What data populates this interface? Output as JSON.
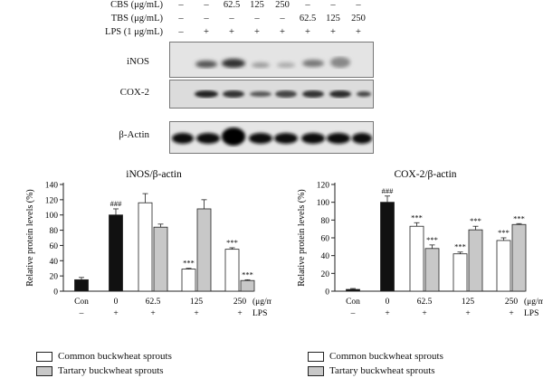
{
  "header": {
    "row_labels": [
      "CBS (μg/mL)",
      "TBS (μg/mL)",
      "LPS (1 μg/mL)"
    ],
    "rows": [
      [
        "–",
        "–",
        "62.5",
        "125",
        "250",
        "–",
        "–",
        "–"
      ],
      [
        "–",
        "–",
        "–",
        "–",
        "–",
        "62.5",
        "125",
        "250"
      ],
      [
        "–",
        "+",
        "+",
        "+",
        "+",
        "+",
        "+",
        "+"
      ]
    ]
  },
  "blots": {
    "labels": [
      "iNOS",
      "COX-2",
      "β-Actin"
    ]
  },
  "legend": {
    "common": "Common buckwheat sprouts",
    "tartary": "Tartary buckwheat sprouts"
  },
  "colors": {
    "control": "#111111",
    "common": "#ffffff",
    "tartary": "#c8c8c8"
  },
  "chart_data": [
    {
      "type": "bar",
      "title": "iNOS/β-actin",
      "ylabel": "Relative protein levels (%)",
      "ylim": [
        0,
        140
      ],
      "yticks": [
        0,
        20,
        40,
        60,
        80,
        100,
        120,
        140
      ],
      "groups": [
        "Con",
        "0",
        "62.5",
        "125",
        "250"
      ],
      "unit_label": "(μg/mL)",
      "lps_row": [
        "–",
        "+",
        "+",
        "+",
        "+"
      ],
      "lps_label": "LPS",
      "control": {
        "values": [
          15,
          100
        ],
        "errors": [
          3,
          8
        ],
        "annotations": [
          "",
          "###"
        ]
      },
      "series": [
        {
          "name": "Common buckwheat sprouts",
          "values": [
            116,
            29,
            55
          ],
          "errors": [
            12,
            1,
            2
          ],
          "annotations": [
            "",
            "***",
            "***"
          ]
        },
        {
          "name": "Tartary buckwheat sprouts",
          "values": [
            84,
            108,
            14
          ],
          "errors": [
            4,
            12,
            1
          ],
          "annotations": [
            "",
            "",
            "***"
          ]
        }
      ]
    },
    {
      "type": "bar",
      "title": "COX-2/β-actin",
      "ylabel": "Relative protein levels (%)",
      "ylim": [
        0,
        120
      ],
      "yticks": [
        0,
        20,
        40,
        60,
        80,
        100,
        120
      ],
      "groups": [
        "Con",
        "0",
        "62.5",
        "125",
        "250"
      ],
      "unit_label": "(μg/mL)",
      "lps_row": [
        "–",
        "+",
        "+",
        "+",
        "+"
      ],
      "lps_label": "LPS",
      "control": {
        "values": [
          2,
          100
        ],
        "errors": [
          1,
          7
        ],
        "annotations": [
          "",
          "###"
        ]
      },
      "series": [
        {
          "name": "Common buckwheat sprouts",
          "values": [
            73,
            42,
            57
          ],
          "errors": [
            4,
            2,
            3
          ],
          "annotations": [
            "***",
            "***",
            "***"
          ]
        },
        {
          "name": "Tartary buckwheat sprouts",
          "values": [
            48,
            69,
            75
          ],
          "errors": [
            4,
            4,
            1
          ],
          "annotations": [
            "***",
            "***",
            "***"
          ]
        }
      ]
    }
  ]
}
